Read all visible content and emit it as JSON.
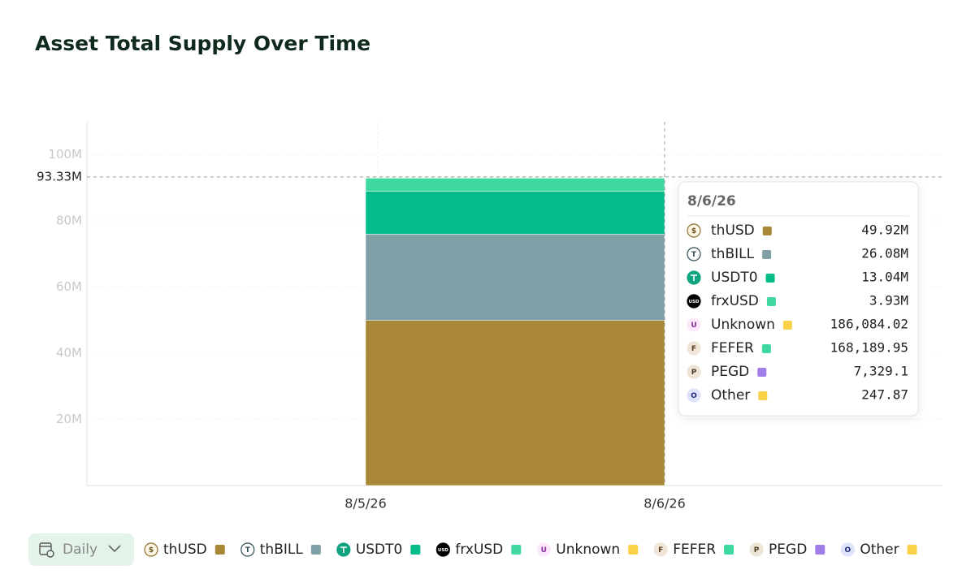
{
  "chart_data": {
    "type": "bar",
    "stacked": true,
    "title": "Asset Total Supply Over Time",
    "categories": [
      "8/6/26"
    ],
    "xticks": [
      "8/5/26",
      "8/6/26"
    ],
    "ylim": [
      0,
      110000000
    ],
    "yticks": [
      {
        "value": 20000000,
        "label": "20M"
      },
      {
        "value": 40000000,
        "label": "40M"
      },
      {
        "value": 60000000,
        "label": "60M"
      },
      {
        "value": 80000000,
        "label": "80M"
      },
      {
        "value": 100000000,
        "label": "100M"
      }
    ],
    "grid": true,
    "crosshair": {
      "value": 93330000,
      "label": "93.33M"
    },
    "interval": "Daily",
    "series": [
      {
        "name": "thUSD",
        "icon": "$",
        "color": "#a88736",
        "values": [
          49920000
        ],
        "value_labels": [
          "49.92M"
        ]
      },
      {
        "name": "thBILL",
        "icon": "T",
        "color": "#819fa6",
        "values": [
          26080000
        ],
        "value_labels": [
          "26.08M"
        ]
      },
      {
        "name": "USDT0",
        "color": "#04bb8a",
        "values": [
          13040000
        ],
        "value_labels": [
          "13.04M"
        ]
      },
      {
        "name": "frxUSD",
        "icon": "USD",
        "color": "#40d9a0",
        "values": [
          3930000
        ],
        "value_labels": [
          "3.93M"
        ]
      },
      {
        "name": "Unknown",
        "icon": "U",
        "color": "#f9d24a",
        "values": [
          186084.02
        ],
        "value_labels": [
          "186,084.02"
        ]
      },
      {
        "name": "FEFER",
        "icon": "F",
        "color": "#3dd9a0",
        "values": [
          168189.95
        ],
        "value_labels": [
          "168,189.95"
        ]
      },
      {
        "name": "PEGD",
        "icon": "P",
        "color": "#a07de8",
        "values": [
          7329.1
        ],
        "value_labels": [
          "7,329.1"
        ]
      },
      {
        "name": "Other",
        "icon": "O",
        "color": "#f9d24a",
        "values": [
          247.87
        ],
        "value_labels": [
          "247.87"
        ]
      }
    ]
  }
}
